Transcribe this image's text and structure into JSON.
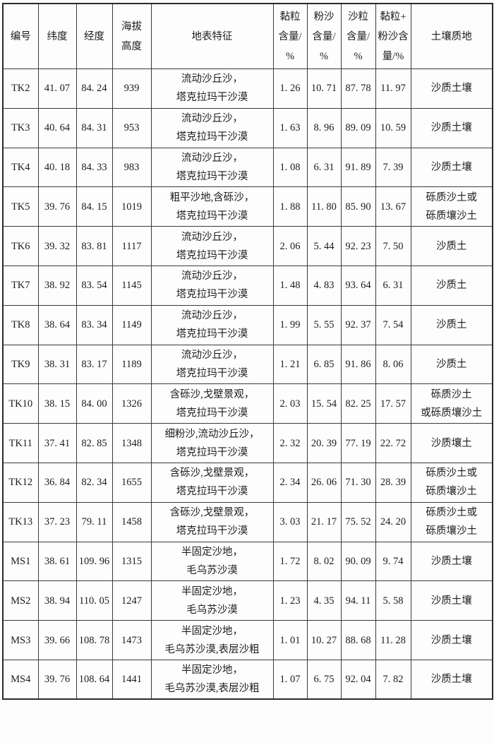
{
  "table": {
    "columns": [
      {
        "key": "id",
        "label": "编号"
      },
      {
        "key": "latitude",
        "label": "纬度"
      },
      {
        "key": "longitude",
        "label": "经度"
      },
      {
        "key": "elevation",
        "label": "海拔\n高度"
      },
      {
        "key": "surface",
        "label": "地表特征"
      },
      {
        "key": "clay",
        "label": "黏粒\n含量/\n%"
      },
      {
        "key": "silt",
        "label": "粉沙\n含量/\n%"
      },
      {
        "key": "sand",
        "label": "沙粒\n含量/\n%"
      },
      {
        "key": "clay_silt",
        "label": "黏粒+\n粉沙含\n量/%"
      },
      {
        "key": "texture",
        "label": "土壤质地"
      }
    ],
    "rows": [
      {
        "id": "TK2",
        "latitude": "41. 07",
        "longitude": "84. 24",
        "elevation": "939",
        "surface": "流动沙丘沙，\n塔克拉玛干沙漠",
        "clay": "1. 26",
        "silt": "10. 71",
        "sand": "87. 78",
        "clay_silt": "11. 97",
        "texture": "沙质土壤"
      },
      {
        "id": "TK3",
        "latitude": "40. 64",
        "longitude": "84. 31",
        "elevation": "953",
        "surface": "流动沙丘沙，\n塔克拉玛干沙漠",
        "clay": "1. 63",
        "silt": "8. 96",
        "sand": "89. 09",
        "clay_silt": "10. 59",
        "texture": "沙质土壤"
      },
      {
        "id": "TK4",
        "latitude": "40. 18",
        "longitude": "84. 33",
        "elevation": "983",
        "surface": "流动沙丘沙，\n塔克拉玛干沙漠",
        "clay": "1. 08",
        "silt": "6. 31",
        "sand": "91. 89",
        "clay_silt": "7. 39",
        "texture": "沙质土壤"
      },
      {
        "id": "TK5",
        "latitude": "39. 76",
        "longitude": "84. 15",
        "elevation": "1019",
        "surface": "粗平沙地,含砾沙，\n塔克拉玛干沙漠",
        "clay": "1. 88",
        "silt": "11. 80",
        "sand": "85. 90",
        "clay_silt": "13. 67",
        "texture": "砾质沙土或\n砾质壤沙土"
      },
      {
        "id": "TK6",
        "latitude": "39. 32",
        "longitude": "83. 81",
        "elevation": "1117",
        "surface": "流动沙丘沙，\n塔克拉玛干沙漠",
        "clay": "2. 06",
        "silt": "5. 44",
        "sand": "92. 23",
        "clay_silt": "7. 50",
        "texture": "沙质土"
      },
      {
        "id": "TK7",
        "latitude": "38. 92",
        "longitude": "83. 54",
        "elevation": "1145",
        "surface": "流动沙丘沙，\n塔克拉玛干沙漠",
        "clay": "1. 48",
        "silt": "4. 83",
        "sand": "93. 64",
        "clay_silt": "6. 31",
        "texture": "沙质土"
      },
      {
        "id": "TK8",
        "latitude": "38. 64",
        "longitude": "83. 34",
        "elevation": "1149",
        "surface": "流动沙丘沙，\n塔克拉玛干沙漠",
        "clay": "1. 99",
        "silt": "5. 55",
        "sand": "92. 37",
        "clay_silt": "7. 54",
        "texture": "沙质土"
      },
      {
        "id": "TK9",
        "latitude": "38. 31",
        "longitude": "83. 17",
        "elevation": "1189",
        "surface": "流动沙丘沙，\n塔克拉玛干沙漠",
        "clay": "1. 21",
        "silt": "6. 85",
        "sand": "91. 86",
        "clay_silt": "8. 06",
        "texture": "沙质土"
      },
      {
        "id": "TK10",
        "latitude": "38. 15",
        "longitude": "84. 00",
        "elevation": "1326",
        "surface": "含砾沙,戈壁景观，\n塔克拉玛干沙漠",
        "clay": "2. 03",
        "silt": "15. 54",
        "sand": "82. 25",
        "clay_silt": "17. 57",
        "texture": "砾质沙土\n或砾质壤沙土"
      },
      {
        "id": "TK11",
        "latitude": "37. 41",
        "longitude": "82. 85",
        "elevation": "1348",
        "surface": "细粉沙,流动沙丘沙，\n塔克拉玛干沙漠",
        "clay": "2. 32",
        "silt": "20. 39",
        "sand": "77. 19",
        "clay_silt": "22. 72",
        "texture": "沙质壤土"
      },
      {
        "id": "TK12",
        "latitude": "36. 84",
        "longitude": "82. 34",
        "elevation": "1655",
        "surface": "含砾沙,戈壁景观，\n塔克拉玛干沙漠",
        "clay": "2. 34",
        "silt": "26. 06",
        "sand": "71. 30",
        "clay_silt": "28. 39",
        "texture": "砾质沙土或\n砾质壤沙土"
      },
      {
        "id": "TK13",
        "latitude": "37. 23",
        "longitude": "79. 11",
        "elevation": "1458",
        "surface": "含砾沙,戈壁景观，\n塔克拉玛干沙漠",
        "clay": "3. 03",
        "silt": "21. 17",
        "sand": "75. 52",
        "clay_silt": "24. 20",
        "texture": "砾质沙土或\n砾质壤沙土"
      },
      {
        "id": "MS1",
        "latitude": "38. 61",
        "longitude": "109. 96",
        "elevation": "1315",
        "surface": "半固定沙地，\n毛乌苏沙漠",
        "clay": "1. 72",
        "silt": "8. 02",
        "sand": "90. 09",
        "clay_silt": "9. 74",
        "texture": "沙质土壤"
      },
      {
        "id": "MS2",
        "latitude": "38. 94",
        "longitude": "110. 05",
        "elevation": "1247",
        "surface": "半固定沙地，\n毛乌苏沙漠",
        "clay": "1. 23",
        "silt": "4. 35",
        "sand": "94. 11",
        "clay_silt": "5. 58",
        "texture": "沙质土壤"
      },
      {
        "id": "MS3",
        "latitude": "39. 66",
        "longitude": "108. 78",
        "elevation": "1473",
        "surface": "半固定沙地，\n毛乌苏沙漠,表层沙粗",
        "clay": "1. 01",
        "silt": "10. 27",
        "sand": "88. 68",
        "clay_silt": "11. 28",
        "texture": "沙质土壤"
      },
      {
        "id": "MS4",
        "latitude": "39. 76",
        "longitude": "108. 64",
        "elevation": "1441",
        "surface": "半固定沙地，\n毛乌苏沙漠,表层沙粗",
        "clay": "1. 07",
        "silt": "6. 75",
        "sand": "92. 04",
        "clay_silt": "7. 82",
        "texture": "沙质土壤"
      }
    ]
  },
  "colors": {
    "background": "#fdfdfd",
    "text": "#1c1c1c",
    "border_inner": "#3a3a3a",
    "border_outer": "#2a2a2a"
  }
}
